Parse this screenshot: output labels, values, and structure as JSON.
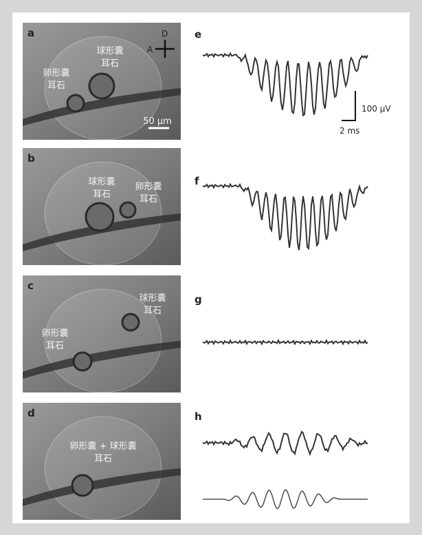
{
  "panels": [
    {
      "label": "a",
      "orientation": {
        "dorsal": "D",
        "anterior": "A"
      },
      "scale_bar": "50 μm",
      "annotations": [
        [
          "球形囊",
          "耳石"
        ],
        [
          "卵形囊",
          "耳石"
        ]
      ]
    },
    {
      "label": "b",
      "annotations": [
        [
          "球形囊",
          "耳石"
        ],
        [
          "卵形囊",
          "耳石"
        ]
      ]
    },
    {
      "label": "c",
      "annotations": [
        [
          "球形囊",
          "耳石"
        ],
        [
          "卵形囊",
          "耳石"
        ]
      ]
    },
    {
      "label": "d",
      "annotations": [
        [
          "卵形囊 + 球形囊",
          "耳石"
        ]
      ]
    }
  ],
  "traces": [
    {
      "label": "e",
      "scale_y": "100 μV",
      "scale_x": "2 ms"
    },
    {
      "label": "f"
    },
    {
      "label": "g"
    },
    {
      "label": "h"
    }
  ]
}
